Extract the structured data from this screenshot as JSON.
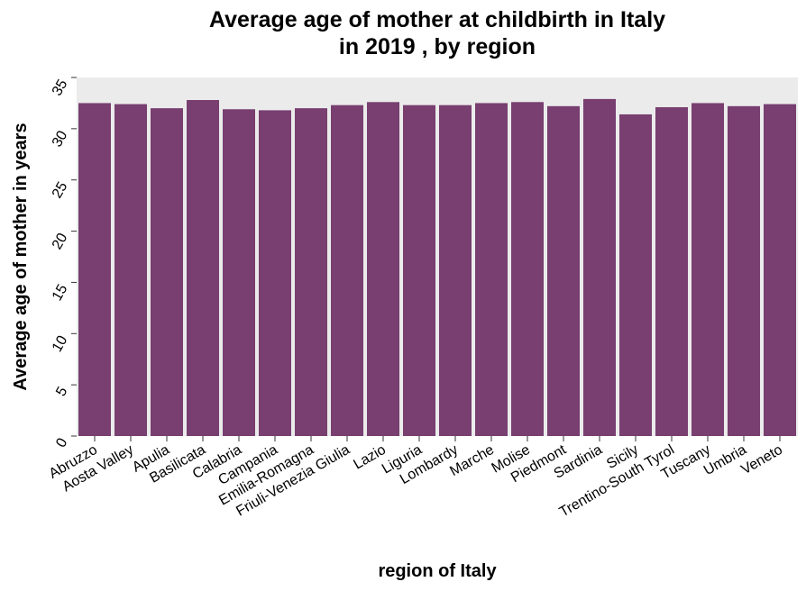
{
  "chart_data": {
    "type": "bar",
    "title_lines": [
      "Average age of mother at childbirth in Italy",
      "in 2019 , by region"
    ],
    "xlabel": "region of Italy",
    "ylabel": "Average age of mother in years",
    "categories": [
      "Abruzzo",
      "Aosta Valley",
      "Apulia",
      "Basilicata",
      "Calabria",
      "Campania",
      "Emilia-Romagna",
      "Friuli-Venezia Giulia",
      "Lazio",
      "Liguria",
      "Lombardy",
      "Marche",
      "Molise",
      "Piedmont",
      "Sardinia",
      "Sicily",
      "Trentino-South Tyrol",
      "Tuscany",
      "Umbria",
      "Veneto"
    ],
    "values": [
      32.5,
      32.4,
      32.0,
      32.8,
      31.9,
      31.8,
      32.0,
      32.3,
      32.6,
      32.3,
      32.3,
      32.5,
      32.6,
      32.2,
      32.9,
      31.4,
      32.1,
      32.5,
      32.2,
      32.4
    ],
    "yticks": [
      "0",
      "5",
      "10",
      "15",
      "20",
      "25",
      "30",
      "35"
    ],
    "ylim": [
      0,
      35
    ],
    "grid": false,
    "bar_color": "#783f70"
  }
}
